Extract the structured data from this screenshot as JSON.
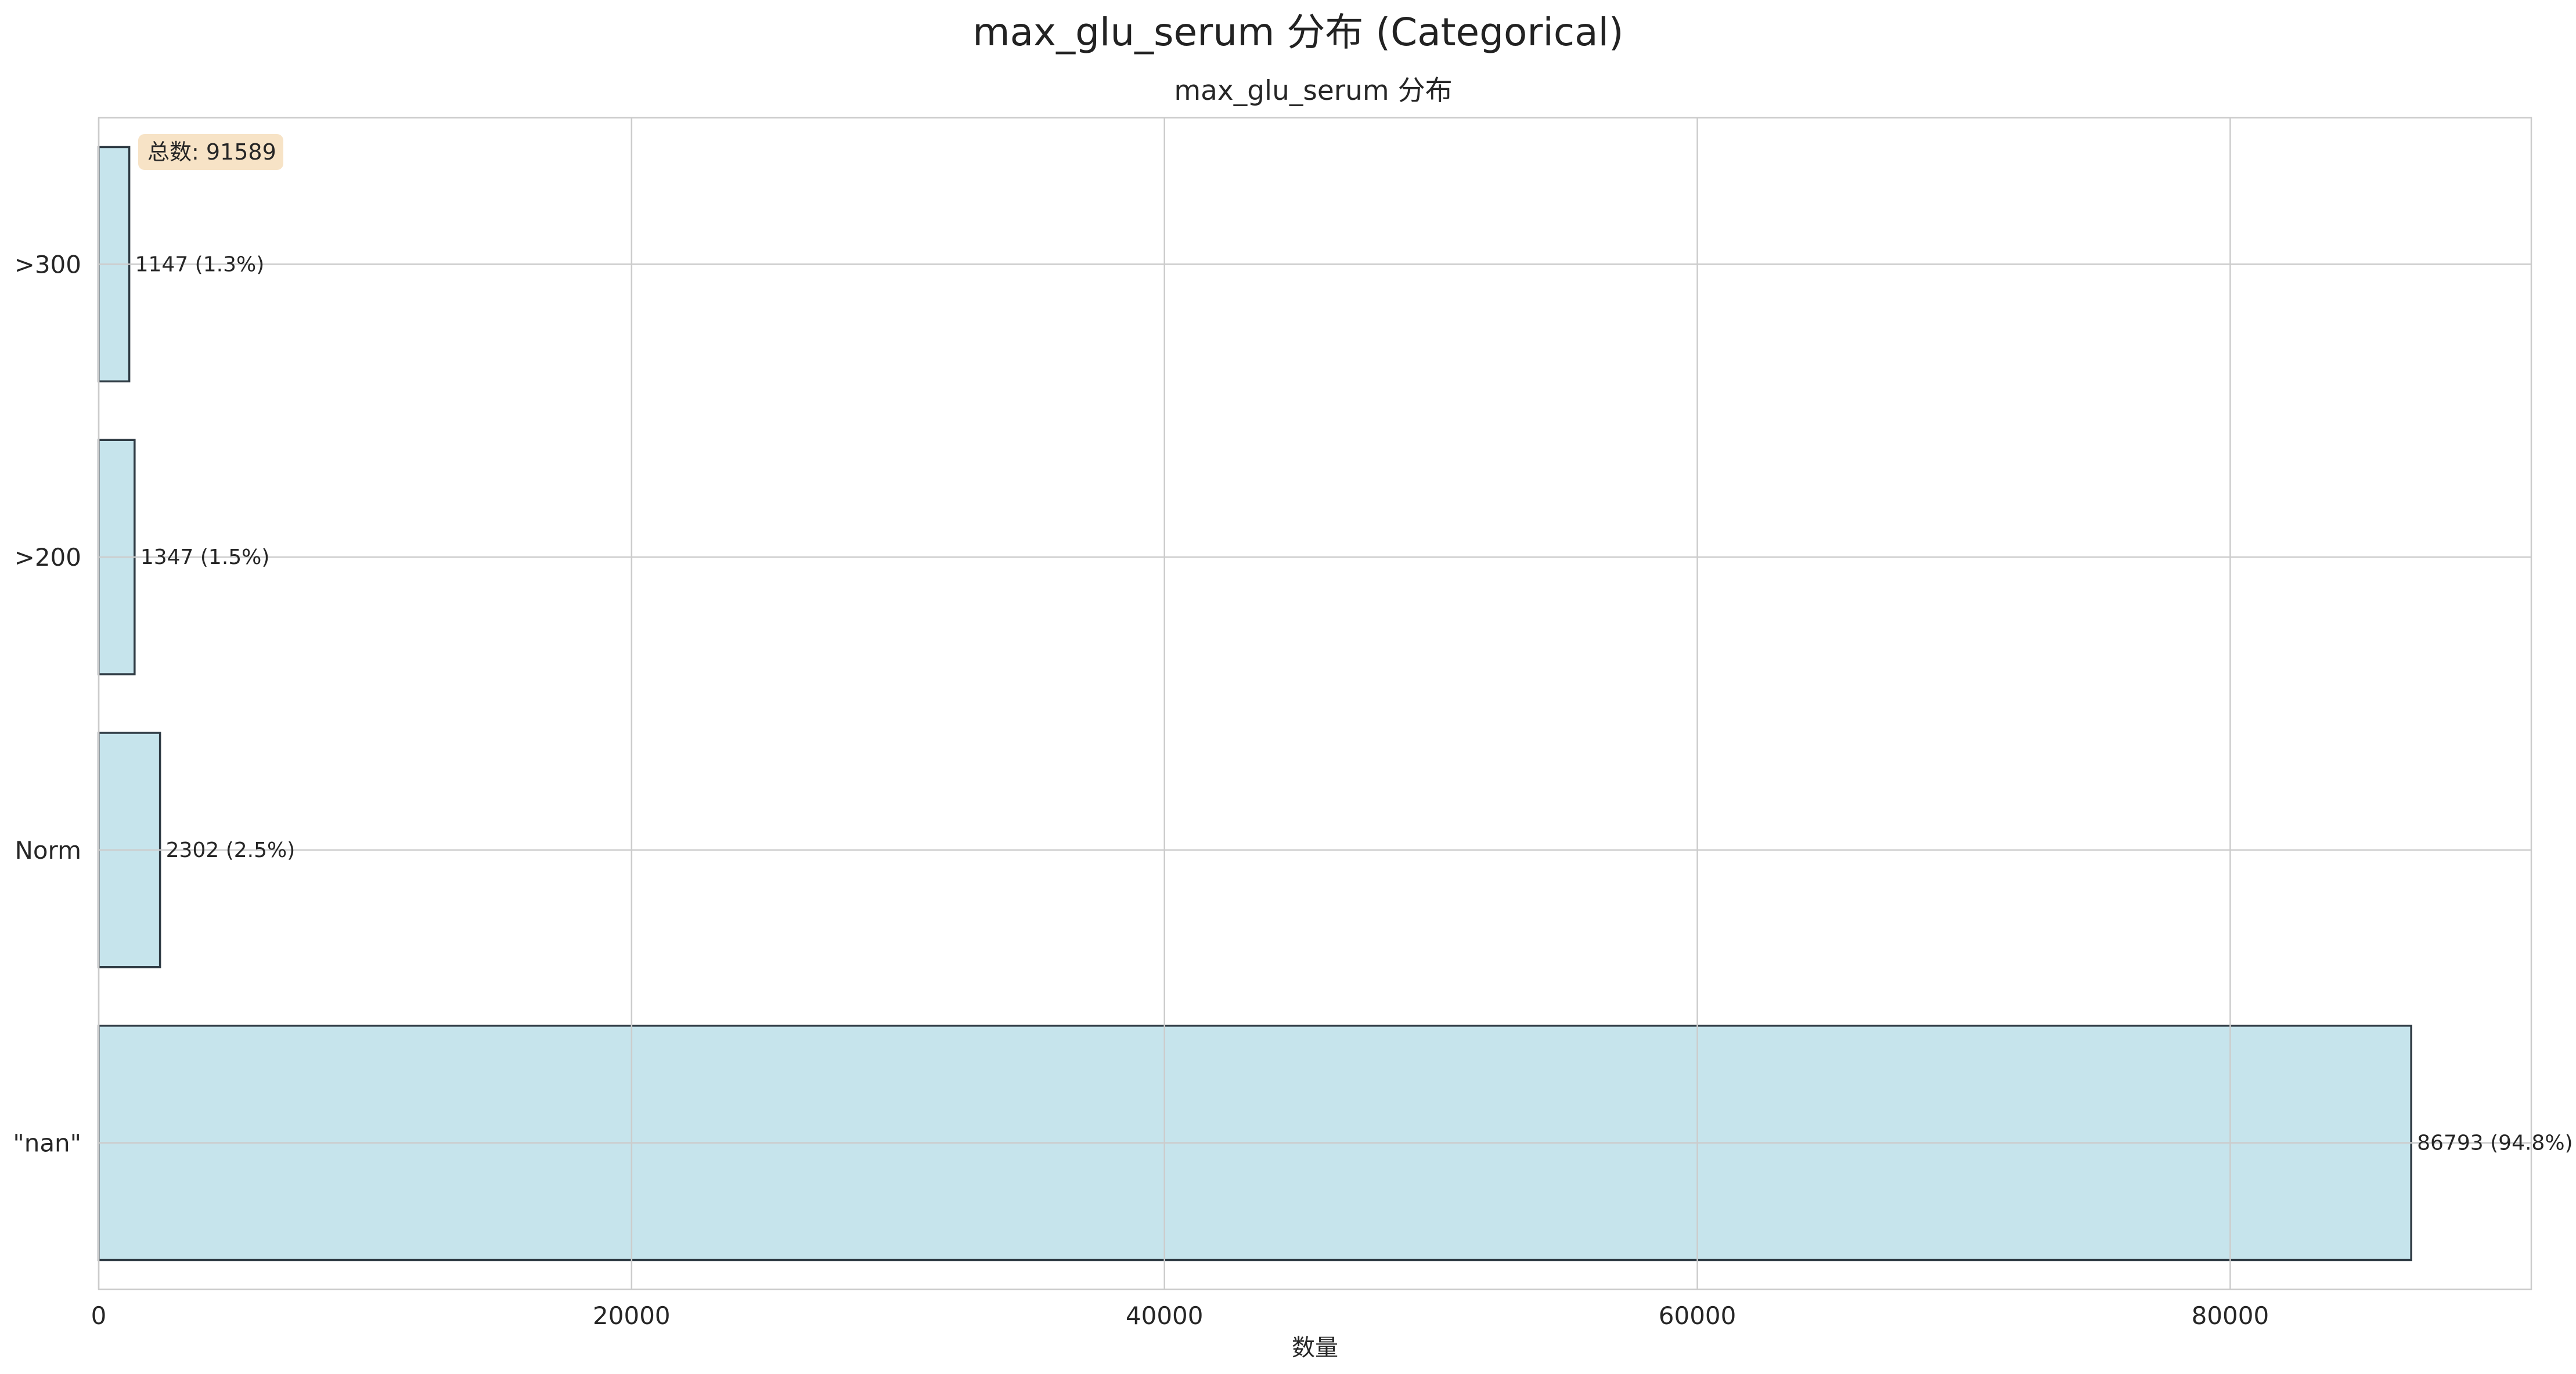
{
  "chart_data": {
    "type": "bar",
    "orientation": "horizontal",
    "title": "max_glu_serum 分布 (Categorical)",
    "subtitle": "max_glu_serum 分布",
    "xlabel": "数量",
    "ylabel": "",
    "categories": [
      ">300",
      ">200",
      "Norm",
      "\"nan\""
    ],
    "values": [
      1147,
      1347,
      2302,
      86793
    ],
    "data_labels": [
      "1147 (1.3%)",
      "1347 (1.5%)",
      "2302 (2.5%)",
      "86793 (94.8%)"
    ],
    "xlim": [
      0,
      91300
    ],
    "xticks": [
      0,
      20000,
      40000,
      60000,
      80000
    ],
    "xtick_labels": [
      "0",
      "20000",
      "40000",
      "60000",
      "80000"
    ],
    "grid": true,
    "bar_color": "#c5e3ec",
    "bar_edge_color": "#2f3b44",
    "total_annotation": "总数: 91589",
    "total_annotation_color": "#f7e2c3",
    "total_annotation_position": "top-left"
  }
}
